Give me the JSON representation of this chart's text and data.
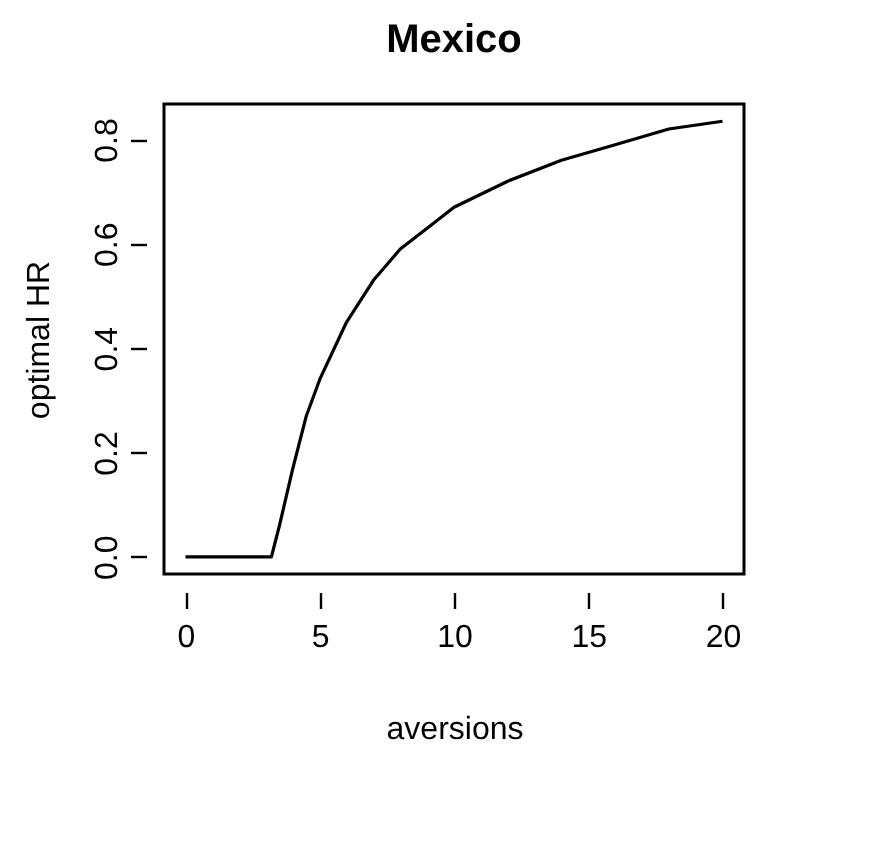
{
  "chart_data": {
    "type": "line",
    "title": "Mexico",
    "xlabel": "aversions",
    "ylabel": "optimal HR",
    "x": [
      0,
      3.2,
      3.5,
      4,
      4.5,
      5,
      6,
      7,
      8,
      9,
      10,
      12,
      14,
      16,
      18,
      20
    ],
    "series": [
      {
        "color": "#000000",
        "values": [
          0,
          0,
          0.06,
          0.17,
          0.27,
          0.34,
          0.45,
          0.53,
          0.59,
          0.63,
          0.67,
          0.72,
          0.76,
          0.79,
          0.82,
          0.835
        ]
      }
    ],
    "xlim": [
      -0.8,
      20.8
    ],
    "ylim": [
      -0.033,
      0.868
    ],
    "xticks": [
      0,
      5,
      10,
      15,
      20
    ],
    "yticks": [
      {
        "value": 0,
        "label": "0.0"
      },
      {
        "value": 0.2,
        "label": "0.2"
      },
      {
        "value": 0.4,
        "label": "0.4"
      },
      {
        "value": 0.6,
        "label": "0.6"
      },
      {
        "value": 0.8,
        "label": "0.8"
      }
    ],
    "grid": false
  }
}
